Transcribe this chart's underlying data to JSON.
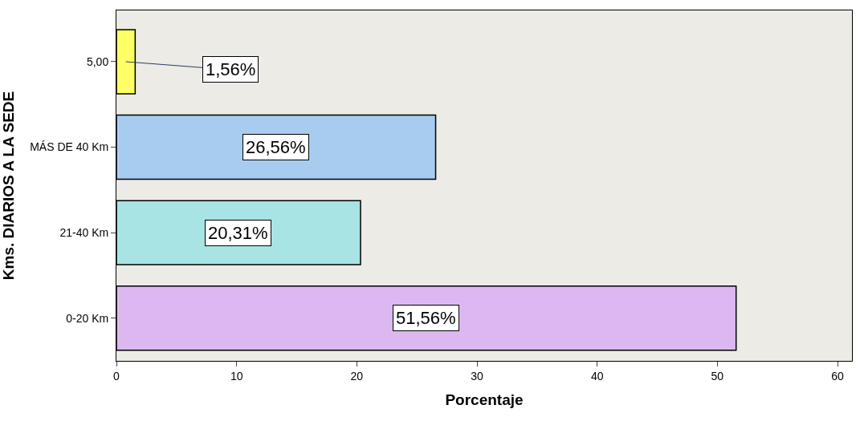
{
  "chart_data": {
    "type": "bar",
    "orientation": "horizontal",
    "xlabel": "Porcentaje",
    "ylabel": "Kms. DIARIOS A LA SEDE",
    "categories": [
      "5,00",
      "MÁS DE 40 Km",
      "21-40 Km",
      "0-20 Km"
    ],
    "values": [
      1.56,
      26.56,
      20.31,
      51.56
    ],
    "colors": [
      "#ffff66",
      "#a8ccf0",
      "#a8e4e4",
      "#dcb8f0"
    ],
    "value_labels": [
      "1,56%",
      "26,56%",
      "20,31%",
      "51,56%"
    ],
    "xlim": [
      0,
      61.2
    ],
    "xticks": [
      0,
      10,
      20,
      30,
      40,
      50,
      60
    ],
    "grid": false
  }
}
